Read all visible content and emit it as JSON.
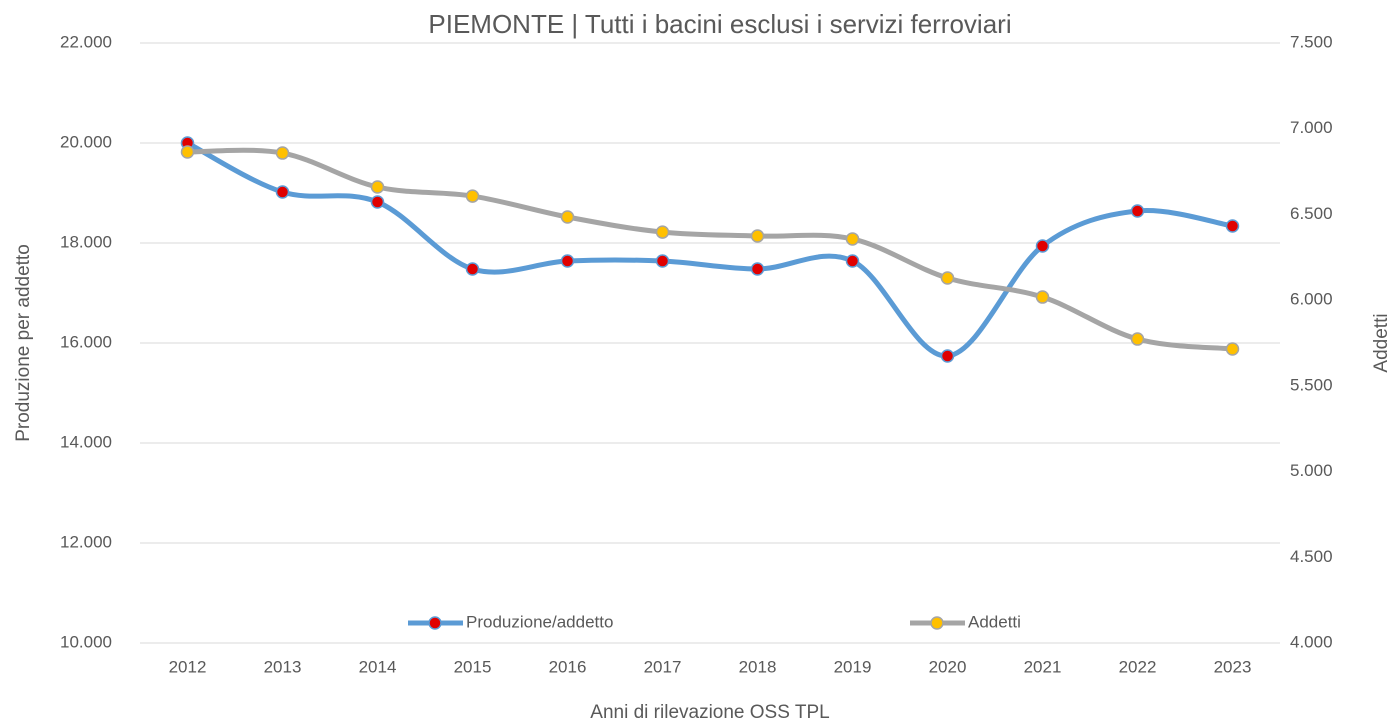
{
  "chart_data": {
    "type": "line",
    "title": "PIEMONTE | Tutti i bacini esclusi i servizi ferroviari",
    "x_label": "Anni di rilevazione OSS TPL",
    "y_label": "Produzione per addetto",
    "y2_label": "Addetti",
    "categories": [
      "2012",
      "2013",
      "2014",
      "2015",
      "2016",
      "2017",
      "2018",
      "2019",
      "2020",
      "2021",
      "2022",
      "2023"
    ],
    "series": [
      {
        "name": "Produzione/addetto",
        "color": "#5b9bd5",
        "marker_color": "#e00000",
        "values": [
          20000,
          19020,
          18820,
          17480,
          17640,
          17640,
          17480,
          17640,
          15740,
          17940,
          18640,
          18340
        ]
      },
      {
        "name": "Addetti",
        "color": "#a5a5a5",
        "marker_color": "#ffc000",
        "axis": "y2",
        "values": [
          6864,
          6858,
          6660,
          6607,
          6485,
          6397,
          6374,
          6357,
          6129,
          6018,
          5773,
          5715
        ]
      }
    ],
    "ylim": [
      10000,
      22000
    ],
    "yticks": [
      {
        "value": 10000,
        "label": "10.000"
      },
      {
        "value": 12000,
        "label": "12.000"
      },
      {
        "value": 14000,
        "label": "14.000"
      },
      {
        "value": 16000,
        "label": "16.000"
      },
      {
        "value": 18000,
        "label": "18.000"
      },
      {
        "value": 20000,
        "label": "20.000"
      },
      {
        "value": 22000,
        "label": "22.000"
      }
    ],
    "y2lim": [
      4000,
      7500
    ],
    "y2ticks": [
      {
        "value": 4000,
        "label": "4.000"
      },
      {
        "value": 4500,
        "label": "4.500"
      },
      {
        "value": 5000,
        "label": "5.000"
      },
      {
        "value": 5500,
        "label": "5.500"
      },
      {
        "value": 6000,
        "label": "6.000"
      },
      {
        "value": 6500,
        "label": "6.500"
      },
      {
        "value": 7000,
        "label": "7.000"
      },
      {
        "value": 7500,
        "label": "7.500"
      }
    ],
    "grid": true,
    "legend": "bottom"
  }
}
